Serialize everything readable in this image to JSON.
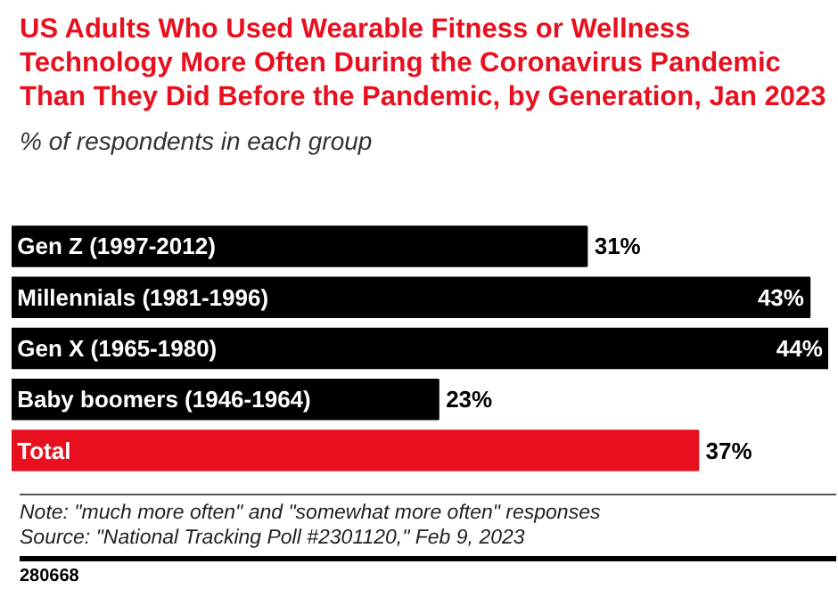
{
  "chart_data": {
    "type": "bar",
    "orientation": "horizontal",
    "title": "US Adults Who Used Wearable Fitness or Wellness Technology More Often During the Coronavirus Pandemic Than They Did Before the Pandemic, by Generation, Jan 2023",
    "subtitle": "% of respondents in each group",
    "categories": [
      "Gen Z (1997-2012)",
      "Millennials (1981-1996)",
      "Gen X (1965-1980)",
      "Baby boomers (1946-1964)",
      "Total"
    ],
    "values": [
      31,
      43,
      44,
      23,
      37
    ],
    "colors": [
      "#000000",
      "#000000",
      "#000000",
      "#000000",
      "#e8101e"
    ],
    "value_labels": [
      "31%",
      "43%",
      "44%",
      "23%",
      "37%"
    ],
    "xlim": [
      0,
      44
    ],
    "grid": false,
    "tick_labels": false,
    "annotations": [
      "Note: \"much more often\" and \"somewhat more often\" responses",
      "Source: \"National Tracking Poll #2301120,\" Feb 9, 2023",
      "280668"
    ]
  }
}
